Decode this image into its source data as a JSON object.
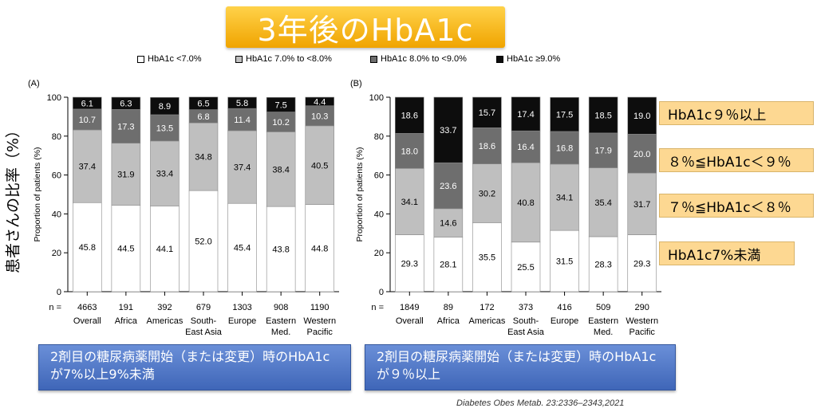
{
  "title": "3年後のHbA1c",
  "legend": [
    {
      "label": "HbA1c <7.0%",
      "color": "#ffffff"
    },
    {
      "label": "HbA1c 7.0% to <8.0%",
      "color": "#bfbfbf"
    },
    {
      "label": "HbA1c 8.0% to <9.0%",
      "color": "#6e6e6e"
    },
    {
      "label": "HbA1c ≥9.0%",
      "color": "#0d0d0d"
    }
  ],
  "outer_ylabel": "患者さんの比率（%）",
  "chart_data": [
    {
      "type": "bar",
      "panel": "(A)",
      "ylabel": "Proportion of patients (%)",
      "ylim": [
        0,
        100
      ],
      "yticks": [
        0,
        20,
        40,
        60,
        80,
        100
      ],
      "n_label": "n =",
      "categories": [
        "Overall",
        "Africa",
        "Americas",
        "South-\nEast Asia",
        "Europe",
        "Eastern\nMed.",
        "Western\nPacific"
      ],
      "n": [
        "4663",
        "191",
        "392",
        "679",
        "1303",
        "908",
        "1190"
      ],
      "series": [
        {
          "name": "HbA1c <7.0%",
          "values": [
            45.8,
            44.5,
            44.1,
            52.0,
            45.4,
            43.8,
            44.8
          ]
        },
        {
          "name": "HbA1c 7.0% to <8.0%",
          "values": [
            37.4,
            31.9,
            33.4,
            34.8,
            37.4,
            38.4,
            40.5
          ]
        },
        {
          "name": "HbA1c 8.0% to <9.0%",
          "values": [
            10.7,
            17.3,
            13.5,
            6.8,
            11.4,
            10.2,
            10.3
          ]
        },
        {
          "name": "HbA1c ≥9.0%",
          "values": [
            6.1,
            6.3,
            8.9,
            6.5,
            5.8,
            7.5,
            4.4
          ]
        }
      ],
      "value_labels": [
        [
          "45.8",
          "44.5",
          "44.1",
          "52.0",
          "45.4",
          "43.8",
          "44.8"
        ],
        [
          "37.4",
          "31.9",
          "33.4",
          "34.8",
          "37.4",
          "38.4",
          "40.5"
        ],
        [
          "10.7",
          "17.3",
          "13.5",
          "6.8",
          "11.4",
          "10.2",
          "10.3"
        ],
        [
          "6.1",
          "6.3",
          "8.9",
          "6.5",
          "5.8",
          "7.5",
          "4.4"
        ]
      ]
    },
    {
      "type": "bar",
      "panel": "(B)",
      "ylabel": "Proportion of patients (%)",
      "ylim": [
        0,
        100
      ],
      "yticks": [
        0,
        20,
        40,
        60,
        80,
        100
      ],
      "n_label": "n =",
      "categories": [
        "Overall",
        "Africa",
        "Americas",
        "South-\nEast Asia",
        "Europe",
        "Eastern\nMed.",
        "Western\nPacific"
      ],
      "n": [
        "1849",
        "89",
        "172",
        "373",
        "416",
        "509",
        "290"
      ],
      "series": [
        {
          "name": "HbA1c <7.0%",
          "values": [
            29.3,
            28.1,
            35.5,
            25.5,
            31.5,
            28.3,
            29.3
          ]
        },
        {
          "name": "HbA1c 7.0% to <8.0%",
          "values": [
            34.1,
            14.6,
            30.2,
            40.8,
            34.1,
            35.4,
            31.7
          ]
        },
        {
          "name": "HbA1c 8.0% to <9.0%",
          "values": [
            18.0,
            23.6,
            18.6,
            16.4,
            16.8,
            17.9,
            20.0
          ]
        },
        {
          "name": "HbA1c ≥9.0%",
          "values": [
            18.6,
            33.7,
            15.7,
            17.4,
            17.5,
            18.5,
            19.0
          ]
        }
      ],
      "value_labels": [
        [
          "29.3",
          "28.1",
          "35.5",
          "25.5",
          "31.5",
          "28.3",
          "29.3"
        ],
        [
          "34.1",
          "14.6",
          "30.2",
          "40.8",
          "34.1",
          "35.4",
          "31.7"
        ],
        [
          "18.0",
          "23.6",
          "18.6",
          "16.4",
          "16.8",
          "17.9",
          "20.0"
        ],
        [
          "18.6",
          "33.7",
          "15.7",
          "17.4",
          "17.5",
          "18.5",
          "19.0"
        ]
      ]
    }
  ],
  "side_notes": [
    "HbA1c９％以上",
    "８％≦HbA1c＜９％",
    "７％≦HbA1c＜８％",
    "HbA1c7%未満"
  ],
  "captions": {
    "left": "2剤目の糖尿病薬開始（または変更）時のHbA1cが7%以上9%未満",
    "right": "2剤目の糖尿病薬開始（または変更）時のHbA1cが９％以上"
  },
  "citation": "Diabetes Obes Metab. 23:2336–2343,2021",
  "colors": {
    "title_bg": "#f5b81c",
    "note_bg": "#fdd892",
    "caption_bg": "#4a72c4"
  }
}
